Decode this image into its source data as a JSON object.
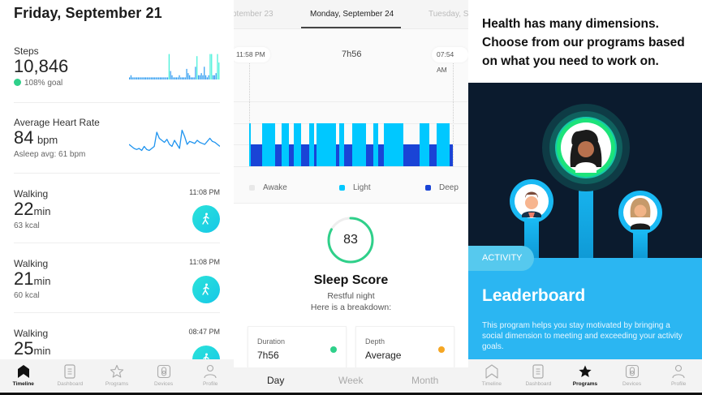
{
  "timeline": {
    "title": "Friday, September 21",
    "steps": {
      "label": "Steps",
      "value": "10,846",
      "goal": "108% goal",
      "goal_color": "#2fd08a"
    },
    "heart_rate": {
      "label": "Average Heart Rate",
      "value": "84",
      "unit": "bpm",
      "asleep": "Asleep avg: 61 bpm"
    },
    "activities": [
      {
        "type": "Walking",
        "duration": "22",
        "unit": "min",
        "kcal": "63 kcal",
        "time": "11:08 PM",
        "icon": "walking-icon"
      },
      {
        "type": "Walking",
        "duration": "21",
        "unit": "min",
        "kcal": "60 kcal",
        "time": "11:08 PM",
        "icon": "walking-icon"
      },
      {
        "type": "Walking",
        "duration": "25",
        "unit": "min",
        "kcal": "",
        "time": "08:47 PM",
        "icon": "walking-icon"
      }
    ],
    "tabbar": [
      {
        "label": "Timeline",
        "icon": "timeline-icon",
        "active": true
      },
      {
        "label": "Dashboard",
        "icon": "dashboard-icon",
        "active": false
      },
      {
        "label": "Programs",
        "icon": "star-icon",
        "active": false
      },
      {
        "label": "Devices",
        "icon": "watch-icon",
        "active": false
      },
      {
        "label": "Profile",
        "icon": "person-icon",
        "active": false
      }
    ]
  },
  "sleep": {
    "date_tabs": [
      "ptember 23",
      "Monday, September 24",
      "Tuesday, Se"
    ],
    "active_date": "Monday, September 24",
    "start_time": "11:58 PM",
    "end_time": "07:54 AM",
    "total": "7h56",
    "legend": [
      {
        "label": "Awake",
        "color": "#e8e8e8"
      },
      {
        "label": "Light",
        "color": "#00c8ff"
      },
      {
        "label": "Deep",
        "color": "#1a44d6"
      }
    ],
    "score": {
      "value": "83",
      "percent": 83,
      "ring_color": "#2fd08a",
      "title": "Sleep Score",
      "subtitle": "Restful night",
      "subtitle2": "Here is a breakdown:"
    },
    "metrics": [
      {
        "label": "Duration",
        "value": "7h56",
        "dot": "#2fd08a"
      },
      {
        "label": "Depth",
        "value": "Average",
        "dot": "#f5a623"
      }
    ],
    "range_tabs": [
      {
        "label": "Day",
        "active": true
      },
      {
        "label": "Week",
        "active": false
      },
      {
        "label": "Month",
        "active": false
      }
    ]
  },
  "programs": {
    "intro": "Health has many dimensions. Choose from our programs based on what you need to work on.",
    "category": "ACTIVITY",
    "title": "Leaderboard",
    "description": "This program helps you stay motivated by bringing a social dimension to meeting and exceeding your activity goals.",
    "accent": "#2bb6f2",
    "tabbar": [
      {
        "label": "Timeline",
        "icon": "timeline-icon",
        "active": false
      },
      {
        "label": "Dashboard",
        "icon": "dashboard-icon",
        "active": false
      },
      {
        "label": "Programs",
        "icon": "star-icon",
        "active": true
      },
      {
        "label": "Devices",
        "icon": "watch-icon",
        "active": false
      },
      {
        "label": "Profile",
        "icon": "person-icon",
        "active": false
      }
    ]
  },
  "chart_data": [
    {
      "type": "bar",
      "title": "Steps",
      "values": [
        1,
        2,
        1,
        1,
        1,
        1,
        1,
        1,
        1,
        1,
        1,
        1,
        1,
        1,
        1,
        1,
        1,
        1,
        1,
        1,
        1,
        1,
        1,
        1,
        1,
        1,
        1,
        12,
        4,
        2,
        1,
        1,
        1,
        1,
        2,
        1,
        1,
        1,
        1,
        5,
        3,
        2,
        1,
        1,
        1,
        6,
        11,
        2,
        2,
        3,
        2,
        6,
        2,
        1,
        2,
        12,
        12,
        2,
        2,
        3,
        12,
        8
      ],
      "ylim": [
        0,
        13
      ]
    },
    {
      "type": "line",
      "title": "Average Heart Rate",
      "values": [
        70,
        68,
        66,
        65,
        66,
        64,
        68,
        65,
        64,
        66,
        68,
        82,
        76,
        74,
        72,
        75,
        70,
        68,
        74,
        70,
        66,
        84,
        78,
        70,
        73,
        72,
        71,
        74,
        72,
        71,
        70,
        73,
        76,
        73,
        72,
        70,
        68
      ]
    },
    {
      "type": "bar",
      "title": "Sleep stages",
      "x_range": [
        "11:58 PM",
        "07:54 AM"
      ],
      "series": [
        {
          "name": "Deep",
          "segments": [
            [
              0,
              251
            ]
          ]
        },
        {
          "name": "Light",
          "segments": [
            [
              0,
              2
            ],
            [
              16,
              32
            ],
            [
              40,
              49
            ],
            [
              55,
              64
            ],
            [
              74,
              80
            ],
            [
              83,
              107
            ],
            [
              111,
              117
            ],
            [
              127,
              144
            ],
            [
              153,
              159
            ],
            [
              166,
              190
            ],
            [
              210,
              222
            ],
            [
              231,
              247
            ]
          ]
        }
      ]
    }
  ]
}
